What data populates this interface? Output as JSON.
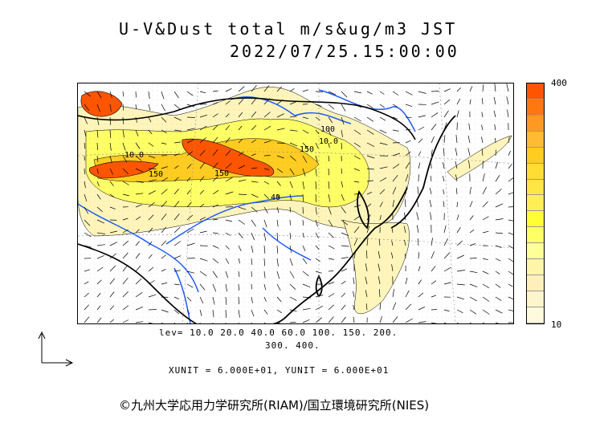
{
  "title": {
    "line1": "U-V&Dust total m/s&ug/m3 JST",
    "line2": "2022/07/25.15:00:00"
  },
  "colorbar": {
    "max_label": "400",
    "min_label": "10",
    "colors": [
      "#ff5500",
      "#ff7711",
      "#ff9922",
      "#ffbb33",
      "#ffcc22",
      "#ffdd33",
      "#ffe644",
      "#ffee55",
      "#ffff33",
      "#ffff66",
      "#ffff99",
      "#fff5aa",
      "#fff0bb",
      "#fff5cc",
      "#fffadd"
    ]
  },
  "map_labels": {
    "contour_10": "10.0",
    "contour_150_a": "150",
    "contour_150_b": "150",
    "contour_150_c": "150",
    "contour_100": "100",
    "contour_40": "40",
    "contour_10_b": "10.0"
  },
  "levels": {
    "line1": "lev= 10.0 20.0 40.0 60.0 100. 150. 200.",
    "line2": "300. 400."
  },
  "units": {
    "text": "XUNIT = 6.000E+01, YUNIT = 6.000E+01"
  },
  "copyright": "©九州大学応用力学研究所(RIAM)/国立環境研究所(NIES)",
  "colors": {
    "dust_high": "#ff5500",
    "dust_mid": "#ffcc22",
    "dust_low": "#ffff66",
    "dust_faint": "#fff5bb",
    "rivers": "#1e5bff",
    "coast": "#000000"
  }
}
